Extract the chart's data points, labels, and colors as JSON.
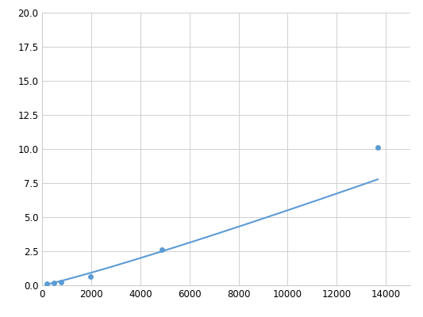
{
  "x": [
    195,
    488,
    781,
    1953,
    4883,
    13672
  ],
  "y": [
    0.1,
    0.2,
    0.25,
    0.62,
    2.6,
    10.1
  ],
  "line_color": "#5b9bd5",
  "marker_color": "#5b9bd5",
  "marker_size": 5,
  "xlim": [
    0,
    15000
  ],
  "ylim": [
    0,
    20
  ],
  "xticks": [
    0,
    2000,
    4000,
    6000,
    8000,
    10000,
    12000,
    14000
  ],
  "yticks": [
    0.0,
    2.5,
    5.0,
    7.5,
    10.0,
    12.5,
    15.0,
    17.5,
    20.0
  ],
  "grid_color": "#d0d0d0",
  "plot_bg_color": "#ffffff",
  "figure_bg_color": "#ffffff",
  "linewidth": 1.5,
  "tick_fontsize": 8.5
}
